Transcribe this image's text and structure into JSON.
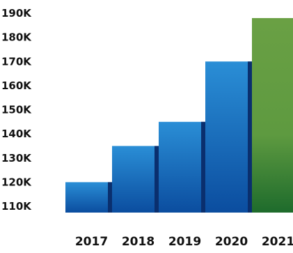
{
  "chart_data": {
    "type": "bar",
    "title": "",
    "xlabel": "",
    "ylabel": "",
    "categories": [
      "2017",
      "2018",
      "2019",
      "2020",
      "2021"
    ],
    "values": [
      120000,
      135000,
      145000,
      170000,
      188000
    ],
    "yticks": [
      "110K",
      "120K",
      "130K",
      "140K",
      "150K",
      "160K",
      "170K",
      "180K",
      "190K"
    ],
    "ytick_values": [
      110000,
      120000,
      130000,
      140000,
      150000,
      160000,
      170000,
      180000,
      190000
    ],
    "ylim": [
      110000,
      190000
    ],
    "grid": false,
    "legend": "none",
    "colors": {
      "bar_top": "#2a8ed6",
      "bar_bottom": "#0b4d9f",
      "bar_shadow": "#0a2f6e",
      "highlight_top": "#6aa044",
      "highlight_bottom": "#1e6b2c",
      "highlight_shadow": "#3f7a30"
    },
    "highlight_category": "2021"
  }
}
